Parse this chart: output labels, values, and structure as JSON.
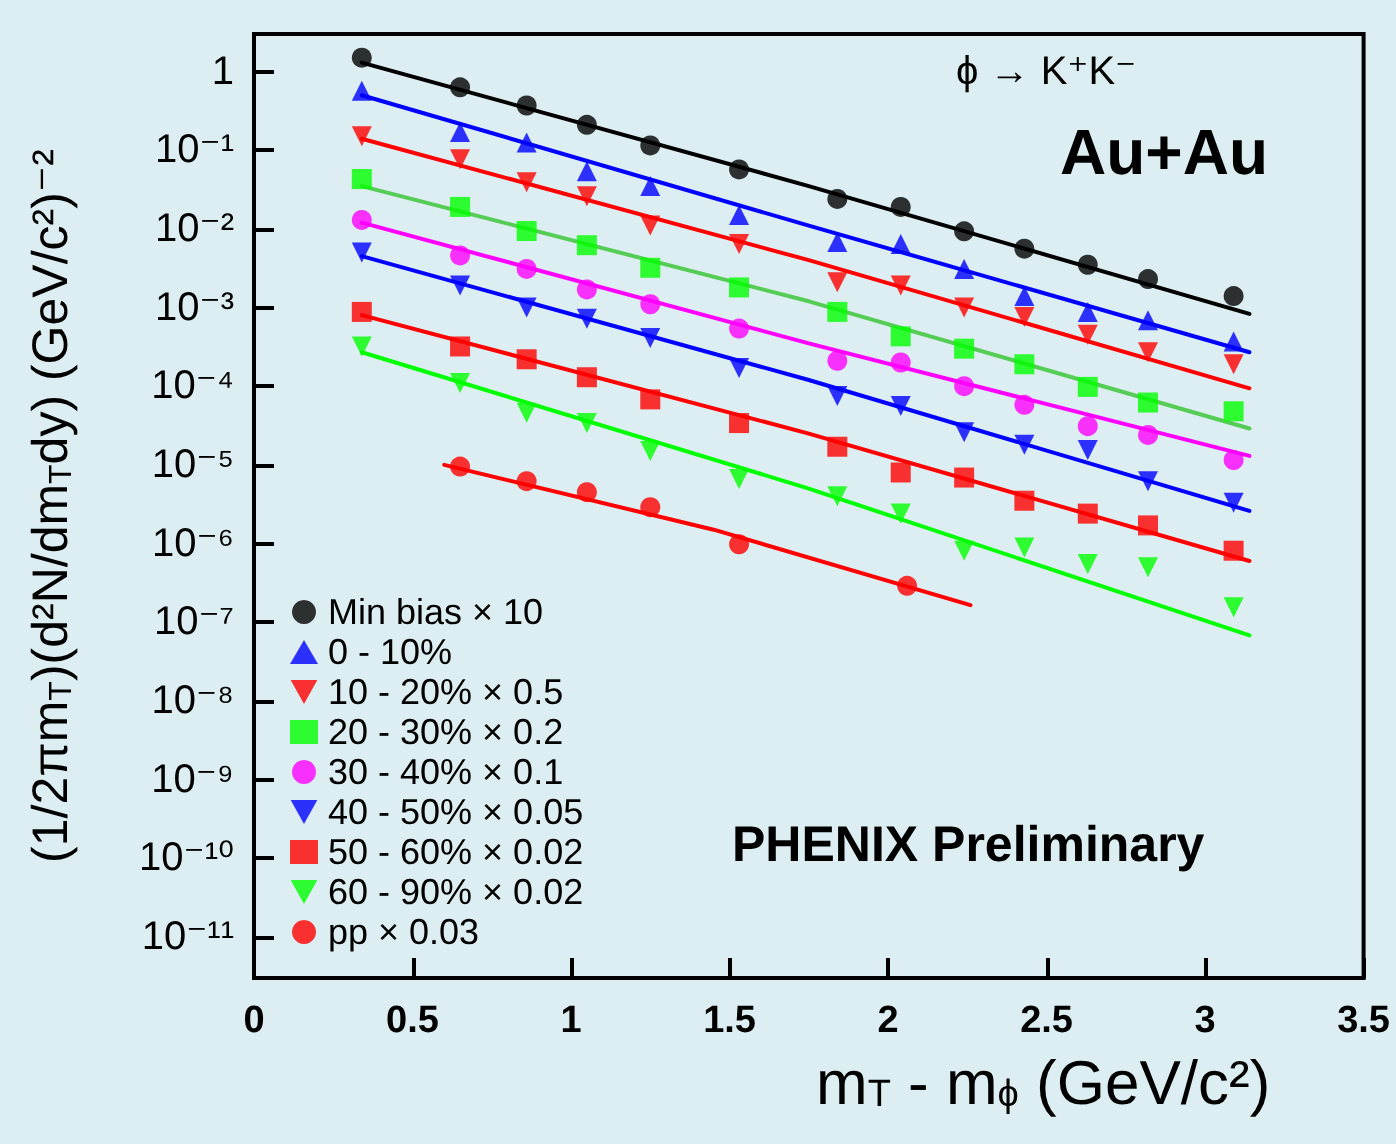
{
  "chart_data": {
    "type": "scatter",
    "xlabel": "m$_{T}$ - m$_{ϕ}$ (GeV/c²)",
    "ylabel": "(1/2πm$_{T}$)(d²N/dm$_{T}$dy) (GeV/c²)⁻²",
    "annotations": [
      "ϕ → K⁺K⁻",
      "Au+Au",
      "PHENIX Preliminary"
    ],
    "x": [
      0.34,
      0.65,
      0.86,
      1.05,
      1.25,
      1.53,
      1.84,
      2.04,
      2.24,
      2.43,
      2.63,
      2.82,
      3.09
    ],
    "log": "y",
    "grid": false,
    "legend": "bottom left",
    "xlim": [
      0,
      3.5
    ],
    "xticks": [
      0,
      0.5,
      1,
      1.5,
      2,
      2.5,
      3,
      3.5
    ],
    "ylim": [
      3e-12,
      3
    ],
    "yticks": [
      {
        "value": 1,
        "label": "1"
      },
      {
        "value": 0.1,
        "label": "10⁻¹"
      },
      {
        "value": 0.01,
        "label": "10⁻²"
      },
      {
        "value": 0.001,
        "label": "10⁻³"
      },
      {
        "value": 0.0001,
        "label": "10⁻⁴"
      },
      {
        "value": 1e-05,
        "label": "10⁻⁵"
      },
      {
        "value": 1e-06,
        "label": "10⁻⁶"
      },
      {
        "value": 1e-07,
        "label": "10⁻⁷"
      },
      {
        "value": 1e-08,
        "label": "10⁻⁸"
      },
      {
        "value": 1e-09,
        "label": "10⁻⁹"
      },
      {
        "value": 1e-10,
        "label": "10⁻¹⁰"
      },
      {
        "value": 1e-11,
        "label": "10⁻¹¹"
      }
    ],
    "series": [
      {
        "name": "Min bias × 10",
        "color": "#000000",
        "marker": "circle",
        "values": [
          1.5,
          0.63,
          0.37,
          0.21,
          0.115,
          0.057,
          0.024,
          0.019,
          0.0093,
          0.0056,
          0.0035,
          0.0023,
          0.0014
        ]
      },
      {
        "name": "0 - 10%",
        "color": "#0000ff",
        "marker": "triangle",
        "values": [
          0.57,
          0.17,
          0.125,
          0.054,
          0.035,
          0.015,
          0.0068,
          0.0064,
          0.0031,
          0.0014,
          0.00088,
          0.00069,
          0.00037
        ]
      },
      {
        "name": "10 - 20% × 0.5",
        "color": "#ff0000",
        "marker": "triangle-down",
        "values": [
          0.15,
          0.077,
          0.039,
          0.026,
          0.011,
          0.0064,
          0.0021,
          0.0019,
          0.001,
          0.00076,
          0.00045,
          0.00027,
          0.00019
        ]
      },
      {
        "name": "20 - 30% × 0.2",
        "color": "#00ff00",
        "marker": "square",
        "values": [
          0.043,
          0.019,
          0.0094,
          0.0062,
          0.0032,
          0.0018,
          0.00088,
          0.00043,
          0.0003,
          0.00019,
          9.8e-05,
          6.2e-05,
          4.8e-05
        ]
      },
      {
        "name": "30 - 40% × 0.1",
        "color": "#ff00ff",
        "marker": "circle",
        "values": [
          0.013,
          0.0046,
          0.0031,
          0.0017,
          0.0011,
          0.00054,
          0.00021,
          0.0002,
          0.0001,
          5.8e-05,
          3.1e-05,
          2.4e-05,
          1.15e-05
        ]
      },
      {
        "name": "40 - 50% × 0.05",
        "color": "#0000ff",
        "marker": "triangle-down",
        "values": [
          0.005,
          0.0019,
          0.001,
          0.00072,
          0.00041,
          0.00017,
          7.5e-05,
          5.6e-05,
          2.6e-05,
          1.8e-05,
          1.55e-05,
          6.2e-06,
          3.3e-06
        ]
      },
      {
        "name": "50 - 60% × 0.02",
        "color": "#ff0000",
        "marker": "square",
        "values": [
          0.00088,
          0.00032,
          0.00022,
          0.00013,
          6.8e-05,
          3.4e-05,
          1.7e-05,
          8e-06,
          6.9e-06,
          3.5e-06,
          2.4e-06,
          1.7e-06,
          8.1e-07
        ]
      },
      {
        "name": "60 - 90% × 0.02",
        "color": "#00ff00",
        "marker": "triangle-down",
        "values": [
          0.00032,
          0.00011,
          4.6e-05,
          3.4e-05,
          1.5e-05,
          6.6e-06,
          4e-06,
          2.4e-06,
          8.1e-07,
          8.9e-07,
          5.5e-07,
          5e-07,
          1.55e-07
        ]
      },
      {
        "name": "pp × 0.03",
        "color": "#ff0000",
        "marker": "circle",
        "x": [
          0.65,
          0.86,
          1.05,
          1.25,
          1.53,
          2.06
        ],
        "values": [
          9.5e-06,
          6.2e-06,
          4.5e-06,
          2.9e-06,
          9.8e-07,
          2.9e-07
        ]
      },
      {
        "type": "line",
        "color": "#000000",
        "x": [
          0.34,
          1.75,
          3.14
        ],
        "values": [
          1.3,
          0.035,
          0.00083
        ]
      },
      {
        "type": "line",
        "color": "#0000ff",
        "x": [
          0.34,
          1.75,
          3.14
        ],
        "values": [
          0.5,
          0.011,
          0.00027
        ]
      },
      {
        "type": "line",
        "color": "#ff0000",
        "x": [
          0.34,
          1.75,
          3.14
        ],
        "values": [
          0.14,
          0.004,
          9.4e-05
        ]
      },
      {
        "type": "line",
        "color": "#55cc55",
        "x": [
          0.34,
          1.75,
          3.14
        ],
        "values": [
          0.035,
          0.0012,
          2.9e-05
        ]
      },
      {
        "type": "line",
        "color": "#ff00ff",
        "x": [
          0.34,
          1.75,
          3.14
        ],
        "values": [
          0.012,
          0.00035,
          1.3e-05
        ]
      },
      {
        "type": "line",
        "color": "#0000ff",
        "x": [
          0.34,
          1.75,
          3.14
        ],
        "values": [
          0.0045,
          0.00012,
          2.6e-06
        ]
      },
      {
        "type": "line",
        "color": "#ff0000",
        "x": [
          0.34,
          1.75,
          3.14
        ],
        "values": [
          0.0008,
          2.5e-05,
          6e-07
        ]
      },
      {
        "type": "line",
        "color": "#00ff00",
        "x": [
          0.34,
          1.75,
          3.14
        ],
        "values": [
          0.00027,
          5e-06,
          6.8e-08
        ]
      },
      {
        "type": "line",
        "color": "#ff0000",
        "x": [
          0.6,
          1.45,
          2.26
        ],
        "values": [
          1e-05,
          1.5e-06,
          1.65e-07
        ]
      }
    ]
  }
}
